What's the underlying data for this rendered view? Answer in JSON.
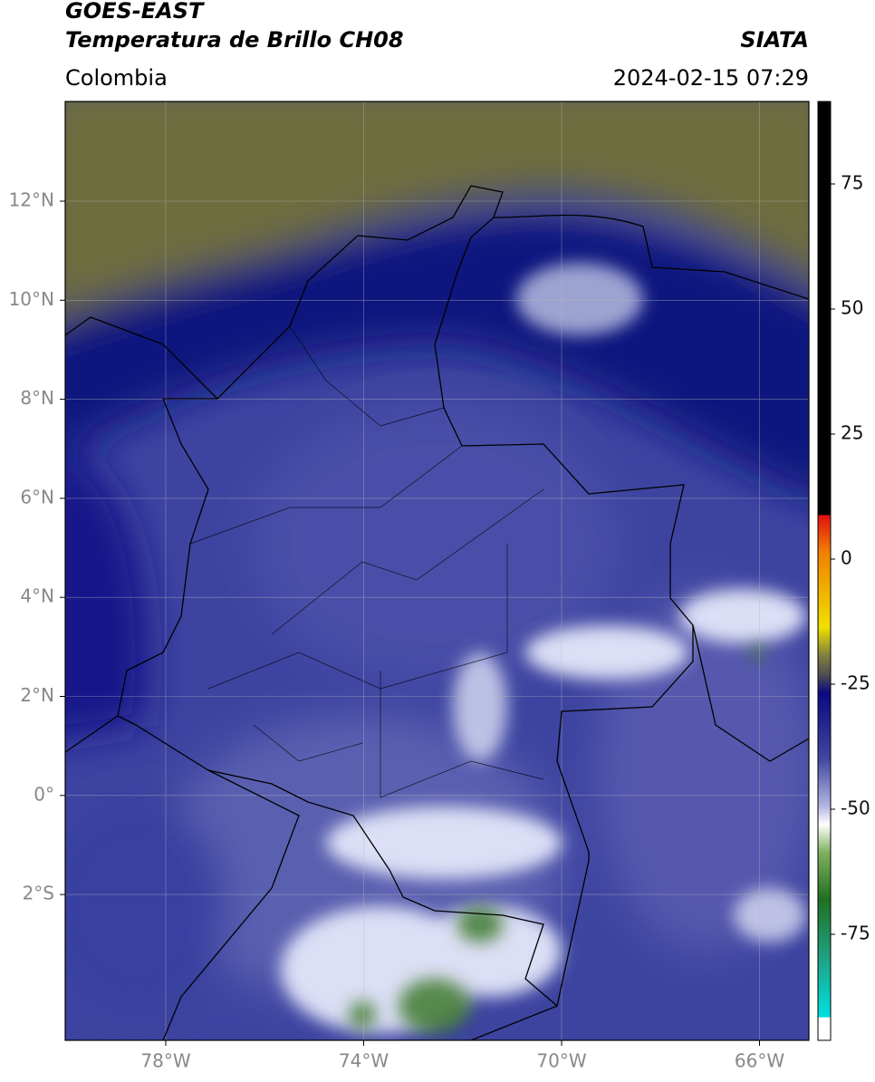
{
  "header": {
    "satellite": "GOES-EAST",
    "product": "Temperatura de Brillo CH08",
    "source": "SIATA",
    "region": "Colombia",
    "datetime": "2024-02-15 07:29"
  },
  "map": {
    "lat_labels": [
      "12°N",
      "10°N",
      "8°N",
      "6°N",
      "4°N",
      "2°N",
      "0°",
      "2°S"
    ],
    "lon_labels": [
      "78°W",
      "74°W",
      "70°W",
      "66°W"
    ]
  },
  "colorbar": {
    "ticks": [
      "75",
      "50",
      "25",
      "0",
      "-25",
      "-50",
      "-75"
    ]
  }
}
